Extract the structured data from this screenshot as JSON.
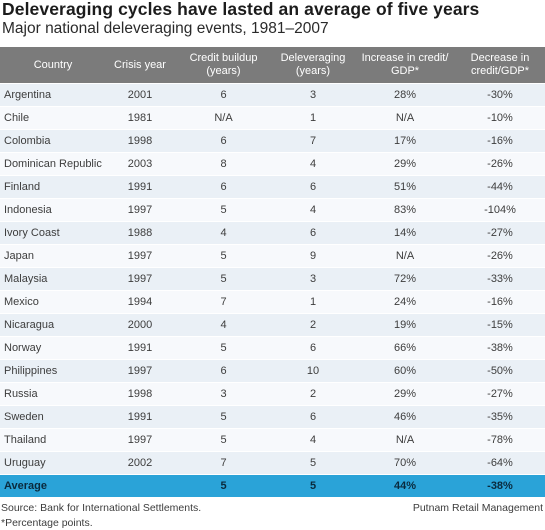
{
  "title": "Deleveraging cycles have lasted an average of five years",
  "subtitle": "Major national deleveraging events, 1981–2007",
  "chart_data": {
    "type": "table",
    "columns": [
      "Country",
      "Crisis year",
      "Credit buildup (years)",
      "Deleveraging (years)",
      "Increase in credit/ GDP*",
      "Decrease in credit/GDP*"
    ],
    "rows": [
      [
        "Argentina",
        "2001",
        "6",
        "3",
        "28%",
        "-30%"
      ],
      [
        "Chile",
        "1981",
        "N/A",
        "1",
        "N/A",
        "-10%"
      ],
      [
        "Colombia",
        "1998",
        "6",
        "7",
        "17%",
        "-16%"
      ],
      [
        "Dominican Republic",
        "2003",
        "8",
        "4",
        "29%",
        "-26%"
      ],
      [
        "Finland",
        "1991",
        "6",
        "6",
        "51%",
        "-44%"
      ],
      [
        "Indonesia",
        "1997",
        "5",
        "4",
        "83%",
        "-104%"
      ],
      [
        "Ivory Coast",
        "1988",
        "4",
        "6",
        "14%",
        "-27%"
      ],
      [
        "Japan",
        "1997",
        "5",
        "9",
        "N/A",
        "-26%"
      ],
      [
        "Malaysia",
        "1997",
        "5",
        "3",
        "72%",
        "-33%"
      ],
      [
        "Mexico",
        "1994",
        "7",
        "1",
        "24%",
        "-16%"
      ],
      [
        "Nicaragua",
        "2000",
        "4",
        "2",
        "19%",
        "-15%"
      ],
      [
        "Norway",
        "1991",
        "5",
        "6",
        "66%",
        "-38%"
      ],
      [
        "Philippines",
        "1997",
        "6",
        "10",
        "60%",
        "-50%"
      ],
      [
        "Russia",
        "1998",
        "3",
        "2",
        "29%",
        "-27%"
      ],
      [
        "Sweden",
        "1991",
        "5",
        "6",
        "46%",
        "-35%"
      ],
      [
        "Thailand",
        "1997",
        "5",
        "4",
        "N/A",
        "-78%"
      ],
      [
        "Uruguay",
        "2002",
        "7",
        "5",
        "70%",
        "-64%"
      ]
    ],
    "average_row": [
      "Average",
      "",
      "5",
      "5",
      "44%",
      "-38%"
    ]
  },
  "footer": {
    "source": "Source: Bank for International Settlements.",
    "note": "*Percentage points.",
    "credit": "Putnam Retail Management"
  },
  "colors": {
    "header_bg": "#7b7b7b",
    "row_odd": "#eaf0f6",
    "row_even": "#f7f9fc",
    "average_bg": "#2aa3d8"
  }
}
